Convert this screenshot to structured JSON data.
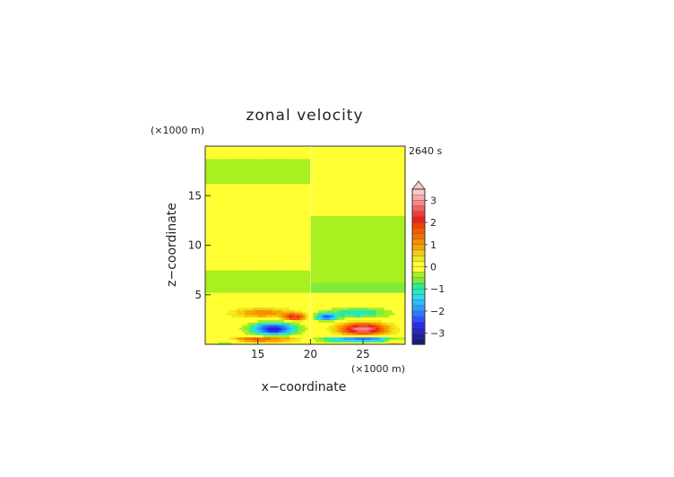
{
  "chart_data": {
    "type": "heatmap",
    "title": "zonal velocity",
    "xlabel": "x−coordinate",
    "ylabel": "z−coordinate",
    "x_unit": "(×1000 m)",
    "y_unit": "(×1000 m)",
    "time_label": "2640 s",
    "xlim": [
      10,
      29
    ],
    "ylim": [
      0,
      20
    ],
    "x_ticks": [
      15,
      20,
      25
    ],
    "y_ticks": [
      5,
      10,
      15
    ],
    "colorbar": {
      "ticks": [
        3,
        2,
        1,
        0,
        -1,
        -2,
        -3
      ],
      "levels": [
        -3.5,
        -3.25,
        -3,
        -2.75,
        -2.5,
        -2.25,
        -2,
        -1.75,
        -1.5,
        -1.25,
        -1,
        -0.75,
        -0.5,
        -0.25,
        0,
        0.25,
        0.5,
        0.75,
        1,
        1.25,
        1.5,
        1.75,
        2,
        2.25,
        2.5,
        2.75,
        3,
        3.25,
        3.5
      ],
      "colors": [
        "#1a1a78",
        "#1f1f9e",
        "#2424c8",
        "#2a2af0",
        "#2d55ff",
        "#2f78ff",
        "#2f9cff",
        "#2fbdff",
        "#2adcf0",
        "#28e8c0",
        "#2de898",
        "#80ec3a",
        "#a8f020",
        "#ffff33",
        "#ffff33",
        "#f2e818",
        "#f5cc10",
        "#f5a800",
        "#f58e00",
        "#f57000",
        "#f55a00",
        "#f24000",
        "#ee2020",
        "#f03c3c",
        "#f56060",
        "#f78888",
        "#f8aaaa",
        "#fbc8c8"
      ],
      "extend": "max"
    },
    "features": [
      {
        "x": 16.5,
        "z": 1.6,
        "value": -3.0,
        "sx": 2.0,
        "sz": 0.6
      },
      {
        "x": 25.0,
        "z": 1.6,
        "value": 3.0,
        "sx": 2.2,
        "sz": 0.6
      },
      {
        "x": 18.5,
        "z": 2.8,
        "value": 2.2,
        "sx": 1.0,
        "sz": 0.35
      },
      {
        "x": 21.5,
        "z": 2.8,
        "value": -2.2,
        "sx": 1.0,
        "sz": 0.35
      },
      {
        "x": 15.5,
        "z": 3.2,
        "value": 1.2,
        "sx": 2.8,
        "sz": 0.5
      },
      {
        "x": 24.5,
        "z": 3.2,
        "value": -1.2,
        "sx": 2.8,
        "sz": 0.5
      },
      {
        "x": 15.0,
        "z": 0.55,
        "value": 1.8,
        "sx": 4.0,
        "sz": 0.25
      },
      {
        "x": 25.0,
        "z": 0.55,
        "value": -2.5,
        "sx": 4.0,
        "sz": 0.25
      },
      {
        "x": 12.0,
        "z": 0.5,
        "value": -0.9,
        "sx": 1.5,
        "sz": 0.4
      },
      {
        "x": 28.0,
        "z": 0.5,
        "value": 0.9,
        "sx": 1.2,
        "sz": 0.4
      }
    ],
    "upper_bands": [
      {
        "z0": 18.8,
        "z1": 20.0,
        "left": 0,
        "right": 0
      },
      {
        "z0": 16.2,
        "z1": 18.8,
        "left": -0.5,
        "right": 0
      },
      {
        "z0": 13.0,
        "z1": 16.2,
        "left": 0,
        "right": 0
      },
      {
        "z0": 11.5,
        "z1": 13.0,
        "left": 0,
        "right": -0.5
      },
      {
        "z0": 7.6,
        "z1": 11.5,
        "left": 0,
        "right": -0.5
      },
      {
        "z0": 5.2,
        "z1": 7.6,
        "left": -0.5,
        "right": -0.5
      }
    ]
  }
}
